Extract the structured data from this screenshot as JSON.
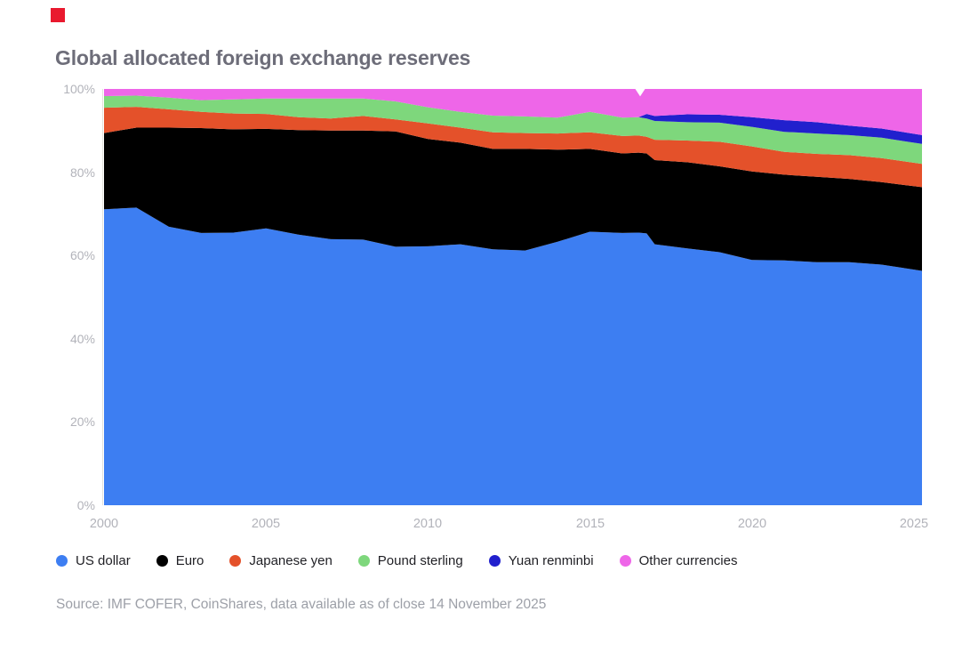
{
  "brand": {
    "mark_color": "#e9192e"
  },
  "header": {
    "title": "Global allocated foreign exchange reserves"
  },
  "axes": {
    "y_ticks": [
      "100%",
      "80%",
      "60%",
      "40%",
      "20%",
      "0%"
    ],
    "x_ticks": [
      "2000",
      "2005",
      "2010",
      "2015",
      "2020",
      "2025"
    ]
  },
  "source": {
    "text": "Source: IMF COFER, CoinShares, data available as of close 14 November 2025"
  },
  "chart_data": {
    "type": "area",
    "stacked": true,
    "title": "Global allocated foreign exchange reserves",
    "xlabel": "",
    "ylabel": "",
    "unit": "%",
    "grid": false,
    "legend_position": "bottom",
    "x_domain": [
      2000,
      2025.25
    ],
    "y_domain": [
      0,
      100
    ],
    "x_tick_values": [
      2000,
      2005,
      2010,
      2015,
      2020,
      2025
    ],
    "y_tick_values": [
      0,
      20,
      40,
      60,
      80,
      100
    ],
    "x": [
      2000,
      2001,
      2002,
      2003,
      2004,
      2005,
      2006,
      2007,
      2008,
      2009,
      2010,
      2011,
      2012,
      2013,
      2014,
      2015,
      2016,
      2016.5,
      2016.75,
      2017,
      2018,
      2019,
      2020,
      2021,
      2022,
      2023,
      2024,
      2025.25
    ],
    "series": [
      {
        "key": "us-dollar",
        "name": "US dollar",
        "color": "#3d7ef2",
        "values": [
          71.1,
          71.5,
          66.9,
          65.4,
          65.5,
          66.5,
          65.0,
          63.9,
          63.8,
          62.1,
          62.2,
          62.7,
          61.5,
          61.2,
          63.3,
          65.7,
          65.4,
          65.5,
          65.3,
          62.7,
          61.7,
          60.8,
          58.9,
          58.8,
          58.4,
          58.4,
          57.8,
          56.3
        ]
      },
      {
        "key": "euro",
        "name": "Euro",
        "color": "#000000",
        "values": [
          18.3,
          19.2,
          23.8,
          25.2,
          24.8,
          23.9,
          25.1,
          26.1,
          26.2,
          27.7,
          25.8,
          24.4,
          24.1,
          24.4,
          22.1,
          19.9,
          19.1,
          19.2,
          19.2,
          20.2,
          20.7,
          20.6,
          21.3,
          20.6,
          20.5,
          20.0,
          19.8,
          20.1
        ]
      },
      {
        "key": "japanese-yen",
        "name": "Japanese yen",
        "color": "#e4512a",
        "values": [
          6.1,
          5.0,
          4.4,
          3.9,
          3.8,
          3.6,
          3.1,
          2.9,
          3.5,
          2.9,
          3.7,
          3.6,
          4.0,
          3.8,
          3.9,
          4.0,
          4.2,
          4.1,
          4.0,
          4.9,
          5.2,
          5.9,
          6.0,
          5.5,
          5.5,
          5.7,
          5.8,
          5.6
        ]
      },
      {
        "key": "pound-sterling",
        "name": "Pound sterling",
        "color": "#7ed77c",
        "values": [
          2.8,
          2.7,
          2.8,
          2.8,
          3.4,
          3.7,
          4.5,
          4.8,
          4.2,
          4.3,
          3.9,
          3.8,
          4.0,
          4.0,
          3.8,
          4.9,
          4.4,
          4.4,
          4.4,
          4.5,
          4.4,
          4.6,
          4.7,
          4.8,
          4.9,
          4.8,
          4.9,
          4.8
        ]
      },
      {
        "key": "yuan-renminbi",
        "name": "Yuan renminbi",
        "color": "#2120cd",
        "values": [
          0,
          0,
          0,
          0,
          0,
          0,
          0,
          0,
          0,
          0,
          0,
          0,
          0,
          0,
          0,
          0,
          0,
          0,
          1.1,
          1.2,
          1.9,
          1.9,
          2.3,
          2.8,
          2.7,
          2.3,
          2.2,
          2.1
        ]
      },
      {
        "key": "other-currencies",
        "name": "Other currencies",
        "color": "#ee66e8",
        "values": [
          1.7,
          1.6,
          2.1,
          2.7,
          2.5,
          2.3,
          2.3,
          2.3,
          2.3,
          3.0,
          4.4,
          5.5,
          6.4,
          6.6,
          6.9,
          5.5,
          6.9,
          6.8,
          6.0,
          6.5,
          6.1,
          6.2,
          6.8,
          7.5,
          8.0,
          8.8,
          9.5,
          11.1
        ]
      }
    ],
    "annotations": {
      "gap_notch": {
        "x": [
          2016.4,
          2016.55,
          2016.7
        ],
        "y": [
          100,
          98.2,
          100
        ],
        "color": "#ffffff"
      }
    }
  }
}
